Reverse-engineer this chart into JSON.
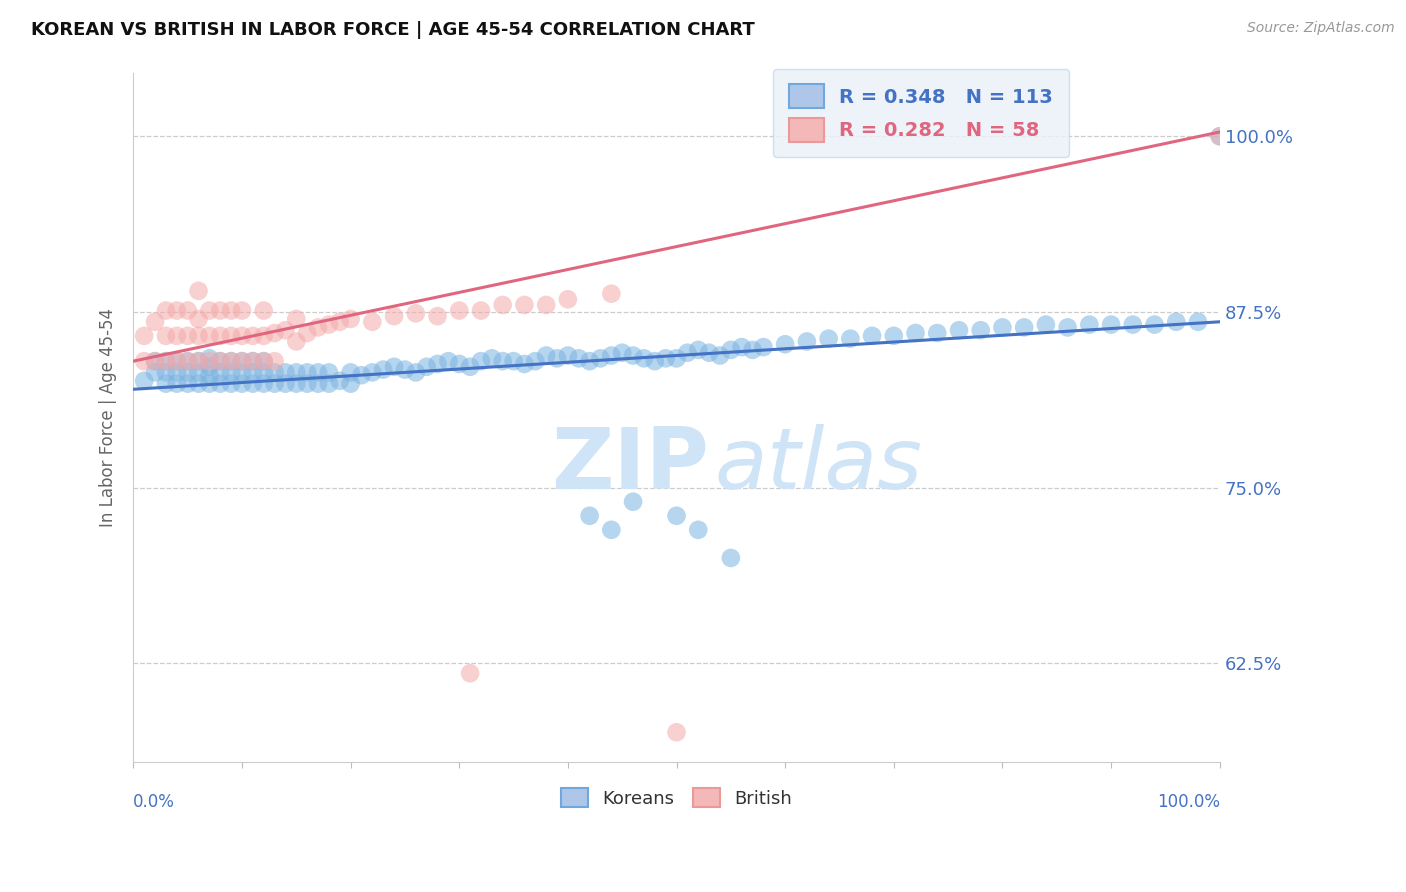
{
  "title": "KOREAN VS BRITISH IN LABOR FORCE | AGE 45-54 CORRELATION CHART",
  "source": "Source: ZipAtlas.com",
  "ylabel": "In Labor Force | Age 45-54",
  "yticks": [
    0.625,
    0.75,
    0.875,
    1.0
  ],
  "ytick_labels": [
    "62.5%",
    "75.0%",
    "87.5%",
    "100.0%"
  ],
  "xmin": 0.0,
  "xmax": 1.0,
  "ymin": 0.555,
  "ymax": 1.045,
  "korean_R": 0.348,
  "korean_N": 113,
  "british_R": 0.282,
  "british_N": 58,
  "korean_color": "#7ab3e0",
  "british_color": "#f4aaaa",
  "korean_line_color": "#4472c4",
  "british_line_color": "#e06680",
  "legend_box_facecolor": "#eaf1f8",
  "legend_box_edgecolor": "#c5d9ee",
  "korean_text_color": "#4472c4",
  "british_text_color": "#e06680",
  "title_fontsize": 13,
  "axis_color": "#4472c4",
  "watermark_color": "#d0e4f7",
  "korean_trend_y0": 0.82,
  "korean_trend_y1": 0.868,
  "british_trend_y0": 0.84,
  "british_trend_y1": 1.003,
  "korean_x": [
    0.01,
    0.02,
    0.02,
    0.03,
    0.03,
    0.03,
    0.04,
    0.04,
    0.04,
    0.05,
    0.05,
    0.05,
    0.06,
    0.06,
    0.06,
    0.07,
    0.07,
    0.07,
    0.07,
    0.08,
    0.08,
    0.08,
    0.09,
    0.09,
    0.09,
    0.1,
    0.1,
    0.1,
    0.11,
    0.11,
    0.11,
    0.12,
    0.12,
    0.12,
    0.13,
    0.13,
    0.14,
    0.14,
    0.15,
    0.15,
    0.16,
    0.16,
    0.17,
    0.17,
    0.18,
    0.18,
    0.19,
    0.2,
    0.2,
    0.21,
    0.22,
    0.23,
    0.24,
    0.25,
    0.26,
    0.27,
    0.28,
    0.29,
    0.3,
    0.31,
    0.32,
    0.33,
    0.34,
    0.35,
    0.36,
    0.37,
    0.38,
    0.39,
    0.4,
    0.41,
    0.42,
    0.43,
    0.44,
    0.45,
    0.46,
    0.47,
    0.48,
    0.49,
    0.5,
    0.51,
    0.52,
    0.53,
    0.54,
    0.55,
    0.56,
    0.57,
    0.58,
    0.6,
    0.62,
    0.64,
    0.66,
    0.68,
    0.7,
    0.72,
    0.74,
    0.76,
    0.78,
    0.8,
    0.82,
    0.84,
    0.86,
    0.88,
    0.9,
    0.92,
    0.94,
    0.96,
    0.98,
    1.0,
    0.42,
    0.44,
    0.46,
    0.5,
    0.55,
    0.52
  ],
  "korean_y": [
    0.826,
    0.832,
    0.84,
    0.824,
    0.832,
    0.84,
    0.824,
    0.832,
    0.84,
    0.824,
    0.832,
    0.84,
    0.824,
    0.832,
    0.84,
    0.824,
    0.83,
    0.836,
    0.842,
    0.824,
    0.832,
    0.84,
    0.824,
    0.832,
    0.84,
    0.824,
    0.832,
    0.84,
    0.824,
    0.832,
    0.84,
    0.824,
    0.832,
    0.84,
    0.824,
    0.832,
    0.824,
    0.832,
    0.824,
    0.832,
    0.824,
    0.832,
    0.824,
    0.832,
    0.824,
    0.832,
    0.826,
    0.824,
    0.832,
    0.83,
    0.832,
    0.834,
    0.836,
    0.834,
    0.832,
    0.836,
    0.838,
    0.84,
    0.838,
    0.836,
    0.84,
    0.842,
    0.84,
    0.84,
    0.838,
    0.84,
    0.844,
    0.842,
    0.844,
    0.842,
    0.84,
    0.842,
    0.844,
    0.846,
    0.844,
    0.842,
    0.84,
    0.842,
    0.842,
    0.846,
    0.848,
    0.846,
    0.844,
    0.848,
    0.85,
    0.848,
    0.85,
    0.852,
    0.854,
    0.856,
    0.856,
    0.858,
    0.858,
    0.86,
    0.86,
    0.862,
    0.862,
    0.864,
    0.864,
    0.866,
    0.864,
    0.866,
    0.866,
    0.866,
    0.866,
    0.868,
    0.868,
    1.0,
    0.73,
    0.72,
    0.74,
    0.73,
    0.7,
    0.72
  ],
  "british_x": [
    0.01,
    0.01,
    0.02,
    0.02,
    0.03,
    0.03,
    0.03,
    0.04,
    0.04,
    0.04,
    0.05,
    0.05,
    0.05,
    0.06,
    0.06,
    0.06,
    0.06,
    0.07,
    0.07,
    0.07,
    0.08,
    0.08,
    0.08,
    0.09,
    0.09,
    0.09,
    0.1,
    0.1,
    0.1,
    0.11,
    0.11,
    0.12,
    0.12,
    0.12,
    0.13,
    0.13,
    0.14,
    0.15,
    0.15,
    0.16,
    0.17,
    0.18,
    0.19,
    0.2,
    0.22,
    0.24,
    0.26,
    0.28,
    0.3,
    0.32,
    0.34,
    0.36,
    0.38,
    0.4,
    0.44,
    1.0,
    0.31,
    0.5
  ],
  "british_y": [
    0.84,
    0.858,
    0.84,
    0.868,
    0.84,
    0.858,
    0.876,
    0.84,
    0.858,
    0.876,
    0.84,
    0.858,
    0.876,
    0.84,
    0.858,
    0.87,
    0.89,
    0.84,
    0.858,
    0.876,
    0.84,
    0.858,
    0.876,
    0.84,
    0.858,
    0.876,
    0.84,
    0.858,
    0.876,
    0.84,
    0.858,
    0.84,
    0.858,
    0.876,
    0.84,
    0.86,
    0.862,
    0.854,
    0.87,
    0.86,
    0.864,
    0.866,
    0.868,
    0.87,
    0.868,
    0.872,
    0.874,
    0.872,
    0.876,
    0.876,
    0.88,
    0.88,
    0.88,
    0.884,
    0.888,
    1.0,
    0.618,
    0.576
  ]
}
